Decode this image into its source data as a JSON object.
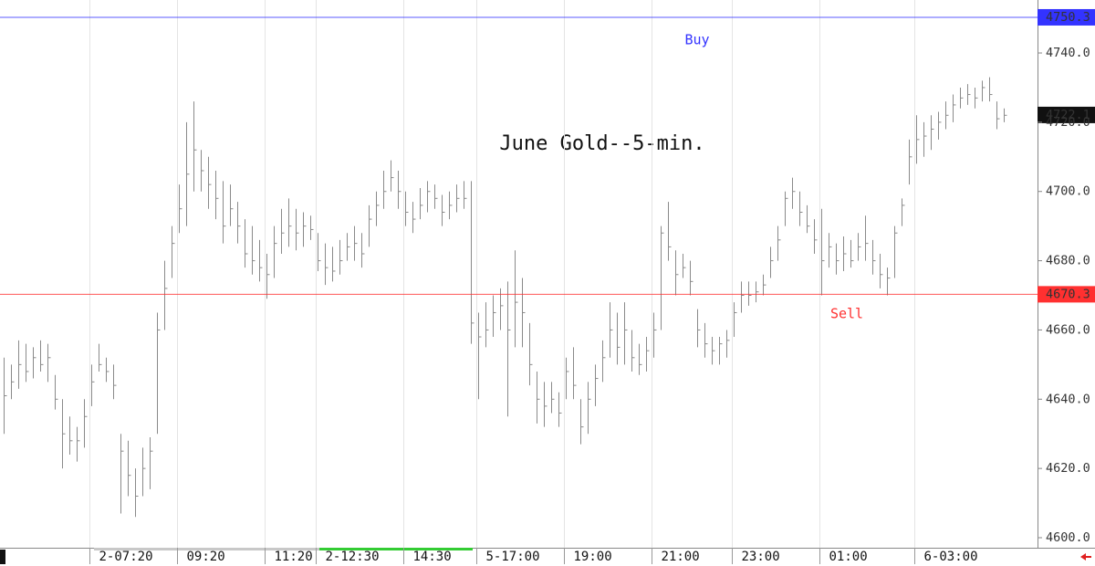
{
  "chart_data": {
    "type": "ohlc",
    "title": "June Gold--5-min.",
    "categories": [
      null,
      null,
      null,
      null,
      null,
      null,
      null,
      null,
      null,
      null,
      null,
      null,
      "2-07:20",
      null,
      null,
      null,
      null,
      null,
      null,
      null,
      null,
      null,
      null,
      null,
      "09:20",
      null,
      null,
      null,
      null,
      null,
      null,
      null,
      null,
      null,
      null,
      null,
      "11:20",
      null,
      null,
      null,
      null,
      null,
      null,
      "2-12:30",
      null,
      null,
      null,
      null,
      null,
      null,
      null,
      null,
      null,
      null,
      null,
      "14:30",
      null,
      null,
      null,
      null,
      null,
      null,
      null,
      null,
      null,
      "5-17:00",
      null,
      null,
      null,
      null,
      null,
      null,
      null,
      null,
      null,
      null,
      null,
      "19:00",
      null,
      null,
      null,
      null,
      null,
      null,
      null,
      null,
      null,
      null,
      null,
      "21:00",
      null,
      null,
      null,
      null,
      null,
      null,
      null,
      null,
      null,
      null,
      "23:00",
      null,
      null,
      null,
      null,
      null,
      null,
      null,
      null,
      null,
      null,
      null,
      "01:00",
      null,
      null,
      null,
      null,
      null,
      null,
      null,
      null,
      null,
      null,
      null,
      null,
      "6-03:00",
      null,
      null,
      null,
      null,
      null,
      null,
      null,
      null,
      null,
      null,
      null,
      null
    ],
    "high": [
      4652,
      4650,
      4657,
      4656,
      4655,
      4657,
      4656,
      4647,
      4640,
      4635,
      4632,
      4640,
      4650,
      4656,
      4652,
      4650,
      4630,
      4628,
      4620,
      4626,
      4629,
      4665,
      4680,
      4690,
      4702,
      4720,
      4726,
      4712,
      4710,
      4706,
      4703,
      4702,
      4697,
      4692,
      4690,
      4686,
      4682,
      4690,
      4695,
      4698,
      4695,
      4694,
      4693,
      4688,
      4685,
      4684,
      4686,
      4688,
      4690,
      4688,
      4696,
      4700,
      4706,
      4709,
      4706,
      4700,
      4697,
      4701,
      4703,
      4702,
      4699,
      4700,
      4702,
      4703,
      4703,
      4665,
      4668,
      4670,
      4672,
      4674,
      4683,
      4675,
      4662,
      4648,
      4645,
      4645,
      4642,
      4652,
      4655,
      4640,
      4645,
      4650,
      4657,
      4668,
      4665,
      4668,
      4660,
      4656,
      4658,
      4665,
      4690,
      4697,
      4683,
      4682,
      4680,
      4666,
      4662,
      4658,
      4658,
      4660,
      4668,
      4674,
      4674,
      4674,
      4676,
      4684,
      4690,
      4700,
      4704,
      4700,
      4696,
      4692,
      4695,
      4688,
      4685,
      4687,
      4686,
      4688,
      4693,
      4686,
      4682,
      4678,
      4690,
      4698,
      4715,
      4722,
      4720,
      4722,
      4723,
      4726,
      4728,
      4730,
      4731,
      4730,
      4732,
      4733,
      4726,
      4724
    ],
    "low": [
      4630,
      4640,
      4643,
      4645,
      4646,
      4648,
      4645,
      4637,
      4620,
      4624,
      4622,
      4626,
      4638,
      4648,
      4645,
      4640,
      4607,
      4612,
      4606,
      4612,
      4614,
      4630,
      4660,
      4675,
      4688,
      4690,
      4700,
      4700,
      4695,
      4692,
      4685,
      4690,
      4685,
      4678,
      4676,
      4674,
      4669,
      4675,
      4682,
      4684,
      4683,
      4684,
      4686,
      4677,
      4673,
      4674,
      4676,
      4680,
      4680,
      4678,
      4684,
      4690,
      4695,
      4700,
      4695,
      4690,
      4688,
      4692,
      4694,
      4695,
      4690,
      4692,
      4694,
      4695,
      4656,
      4640,
      4655,
      4658,
      4660,
      4635,
      4655,
      4655,
      4644,
      4633,
      4632,
      4636,
      4632,
      4640,
      4640,
      4627,
      4630,
      4638,
      4645,
      4652,
      4650,
      4650,
      4648,
      4647,
      4648,
      4652,
      4660,
      4680,
      4670,
      4675,
      4670,
      4655,
      4652,
      4650,
      4650,
      4652,
      4658,
      4665,
      4667,
      4668,
      4670,
      4675,
      4680,
      4690,
      4695,
      4690,
      4688,
      4682,
      4670,
      4678,
      4676,
      4677,
      4678,
      4680,
      4680,
      4676,
      4672,
      4670,
      4675,
      4690,
      4702,
      4708,
      4710,
      4712,
      4715,
      4718,
      4720,
      4724,
      4725,
      4724,
      4726,
      4726,
      4718,
      4720
    ],
    "close": [
      4641,
      4645,
      4650,
      4648,
      4652,
      4650,
      4652,
      4640,
      4630,
      4628,
      4628,
      4635,
      4645,
      4650,
      4648,
      4644,
      4625,
      4618,
      4612,
      4620,
      4625,
      4660,
      4672,
      4685,
      4695,
      4705,
      4712,
      4706,
      4702,
      4698,
      4690,
      4695,
      4690,
      4682,
      4680,
      4678,
      4676,
      4685,
      4688,
      4690,
      4688,
      4690,
      4689,
      4680,
      4678,
      4677,
      4680,
      4684,
      4685,
      4682,
      4692,
      4696,
      4700,
      4704,
      4700,
      4694,
      4692,
      4696,
      4700,
      4698,
      4694,
      4696,
      4698,
      4698,
      4662,
      4658,
      4660,
      4665,
      4667,
      4660,
      4668,
      4665,
      4650,
      4640,
      4638,
      4640,
      4636,
      4648,
      4644,
      4632,
      4640,
      4646,
      4652,
      4660,
      4655,
      4660,
      4652,
      4650,
      4654,
      4660,
      4688,
      4684,
      4676,
      4678,
      4674,
      4660,
      4656,
      4654,
      4656,
      4657,
      4665,
      4670,
      4670,
      4671,
      4673,
      4680,
      4686,
      4698,
      4700,
      4694,
      4690,
      4686,
      4680,
      4684,
      4680,
      4682,
      4680,
      4684,
      4685,
      4680,
      4676,
      4675,
      4688,
      4696,
      4710,
      4715,
      4716,
      4718,
      4720,
      4722,
      4725,
      4727,
      4728,
      4727,
      4730,
      4728,
      4721,
      4722
    ],
    "color": "#8a8a8a",
    "ylim": [
      4597.1,
      4755.3
    ],
    "yticks": [
      {
        "value": 4600,
        "label": "4600.0"
      },
      {
        "value": 4620,
        "label": "4620.0"
      },
      {
        "value": 4640,
        "label": "4640.0"
      },
      {
        "value": 4660,
        "label": "4660.0"
      },
      {
        "value": 4680,
        "label": "4680.0"
      },
      {
        "value": 4700,
        "label": "4700.0"
      },
      {
        "value": 4720,
        "label": "4720.0"
      },
      {
        "value": 4740,
        "label": "4740.0"
      }
    ],
    "grid": true,
    "levels": [
      {
        "name": "Buy",
        "value": 4750.3,
        "label": "4750.3",
        "color": "#3333ff"
      },
      {
        "name": "Sell",
        "value": 4670.3,
        "label": "4670.3",
        "color": "#ff3030"
      }
    ],
    "last": {
      "value": 4722.1,
      "label": "4722.1",
      "color": "#111111"
    }
  }
}
